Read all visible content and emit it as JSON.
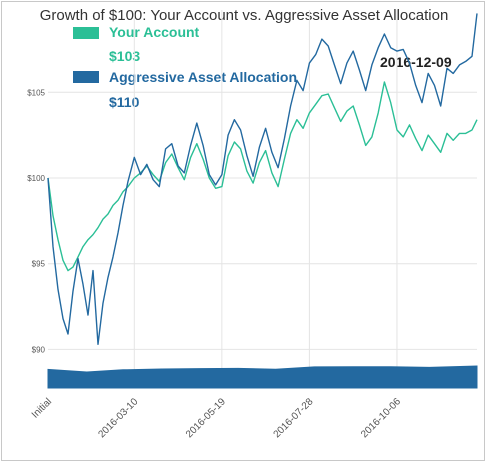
{
  "chart_data": {
    "type": "line",
    "title": "Growth of $100: Your Account vs. Aggressive Asset Allocation",
    "xlabel": "",
    "ylabel": "",
    "x_tick_labels": [
      "Initial",
      "2016-03-10",
      "2016-05-19",
      "2016-07-28",
      "2016-10-06"
    ],
    "y_ticks": [
      90,
      95,
      100,
      105
    ],
    "y_tick_labels": [
      "$90",
      "$95",
      "$100",
      "$105"
    ],
    "ylim": [
      89.5,
      109.8
    ],
    "x_axis_type": "date",
    "x_range": [
      "2016-01-01",
      "2016-12-31"
    ],
    "grid": true,
    "legend_position": "top-left",
    "hover": {
      "date": "2016-12-09",
      "values": [
        "$103",
        "$110"
      ]
    },
    "series": [
      {
        "name": "Your Account",
        "color": "#2bbf96",
        "x": [
          "2016-01-01",
          "2016-01-05",
          "2016-01-09",
          "2016-01-13",
          "2016-01-17",
          "2016-01-21",
          "2016-01-25",
          "2016-01-29",
          "2016-02-02",
          "2016-02-06",
          "2016-02-10",
          "2016-02-14",
          "2016-02-18",
          "2016-02-22",
          "2016-02-26",
          "2016-03-01",
          "2016-03-05",
          "2016-03-10",
          "2016-03-15",
          "2016-03-20",
          "2016-03-25",
          "2016-03-30",
          "2016-04-04",
          "2016-04-09",
          "2016-04-14",
          "2016-04-19",
          "2016-04-24",
          "2016-04-29",
          "2016-05-04",
          "2016-05-09",
          "2016-05-14",
          "2016-05-19",
          "2016-05-24",
          "2016-05-29",
          "2016-06-03",
          "2016-06-08",
          "2016-06-13",
          "2016-06-18",
          "2016-06-23",
          "2016-06-28",
          "2016-07-03",
          "2016-07-08",
          "2016-07-13",
          "2016-07-18",
          "2016-07-23",
          "2016-07-28",
          "2016-08-02",
          "2016-08-07",
          "2016-08-12",
          "2016-08-17",
          "2016-08-22",
          "2016-08-27",
          "2016-09-01",
          "2016-09-06",
          "2016-09-11",
          "2016-09-16",
          "2016-09-21",
          "2016-09-26",
          "2016-10-01",
          "2016-10-06",
          "2016-10-11",
          "2016-10-16",
          "2016-10-21",
          "2016-10-26",
          "2016-10-31",
          "2016-11-05",
          "2016-11-10",
          "2016-11-15",
          "2016-11-20",
          "2016-11-25",
          "2016-11-30",
          "2016-12-05",
          "2016-12-09"
        ],
        "values": [
          100.0,
          97.8,
          96.4,
          95.2,
          94.6,
          94.8,
          95.4,
          96.0,
          96.4,
          96.7,
          97.1,
          97.6,
          97.9,
          98.4,
          98.7,
          99.2,
          99.5,
          100.0,
          100.3,
          100.7,
          100.2,
          99.8,
          100.9,
          101.4,
          100.6,
          99.9,
          101.2,
          102.0,
          101.1,
          100.0,
          99.4,
          99.5,
          101.3,
          102.1,
          101.7,
          100.4,
          99.7,
          100.9,
          101.6,
          100.3,
          99.5,
          101.1,
          102.6,
          103.4,
          102.9,
          103.8,
          104.3,
          104.8,
          104.9,
          104.1,
          103.3,
          103.9,
          104.2,
          103.1,
          101.9,
          102.4,
          103.8,
          105.6,
          104.4,
          102.8,
          102.4,
          103.1,
          102.3,
          101.6,
          102.5,
          102.0,
          101.5,
          102.6,
          102.2,
          102.6,
          102.6,
          102.8,
          103.4
        ]
      },
      {
        "name": "Aggressive Asset Allocation",
        "color": "#2369a0",
        "x": [
          "2016-01-01",
          "2016-01-05",
          "2016-01-09",
          "2016-01-13",
          "2016-01-17",
          "2016-01-21",
          "2016-01-25",
          "2016-01-29",
          "2016-02-02",
          "2016-02-06",
          "2016-02-10",
          "2016-02-14",
          "2016-02-18",
          "2016-02-22",
          "2016-02-26",
          "2016-03-01",
          "2016-03-05",
          "2016-03-10",
          "2016-03-15",
          "2016-03-20",
          "2016-03-25",
          "2016-03-30",
          "2016-04-04",
          "2016-04-09",
          "2016-04-14",
          "2016-04-19",
          "2016-04-24",
          "2016-04-29",
          "2016-05-04",
          "2016-05-09",
          "2016-05-14",
          "2016-05-19",
          "2016-05-24",
          "2016-05-29",
          "2016-06-03",
          "2016-06-08",
          "2016-06-13",
          "2016-06-18",
          "2016-06-23",
          "2016-06-28",
          "2016-07-03",
          "2016-07-08",
          "2016-07-13",
          "2016-07-18",
          "2016-07-23",
          "2016-07-28",
          "2016-08-02",
          "2016-08-07",
          "2016-08-12",
          "2016-08-17",
          "2016-08-22",
          "2016-08-27",
          "2016-09-01",
          "2016-09-06",
          "2016-09-11",
          "2016-09-16",
          "2016-09-21",
          "2016-09-26",
          "2016-10-01",
          "2016-10-06",
          "2016-10-11",
          "2016-10-16",
          "2016-10-21",
          "2016-10-26",
          "2016-10-31",
          "2016-11-05",
          "2016-11-10",
          "2016-11-15",
          "2016-11-20",
          "2016-11-25",
          "2016-11-30",
          "2016-12-05",
          "2016-12-09"
        ],
        "values": [
          100.0,
          96.0,
          93.5,
          91.8,
          90.9,
          93.4,
          95.3,
          93.8,
          92.0,
          94.6,
          90.3,
          92.7,
          94.2,
          95.4,
          96.8,
          98.4,
          99.8,
          101.2,
          100.2,
          100.8,
          99.9,
          99.5,
          101.7,
          102.0,
          100.7,
          100.3,
          101.9,
          103.2,
          101.9,
          100.2,
          99.6,
          100.2,
          102.5,
          103.4,
          102.8,
          101.3,
          100.1,
          101.8,
          102.9,
          101.5,
          100.6,
          102.3,
          104.2,
          105.7,
          105.1,
          106.7,
          107.2,
          108.1,
          107.7,
          106.6,
          105.5,
          106.7,
          107.4,
          106.3,
          105.1,
          106.6,
          107.6,
          108.4,
          107.6,
          107.4,
          107.5,
          106.7,
          105.4,
          104.4,
          106.1,
          105.4,
          104.2,
          106.4,
          106.1,
          106.6,
          106.8,
          107.1,
          109.6
        ]
      }
    ],
    "navigator": {
      "x": [
        "2016-01-01",
        "2016-02-01",
        "2016-03-01",
        "2016-04-01",
        "2016-05-01",
        "2016-06-01",
        "2016-07-01",
        "2016-08-01",
        "2016-09-01",
        "2016-10-01",
        "2016-11-01",
        "2016-12-09"
      ],
      "values": [
        100.0,
        92.5,
        98.8,
        101.0,
        102.1,
        102.8,
        100.6,
        107.0,
        107.4,
        107.2,
        105.6,
        109.6
      ]
    }
  }
}
